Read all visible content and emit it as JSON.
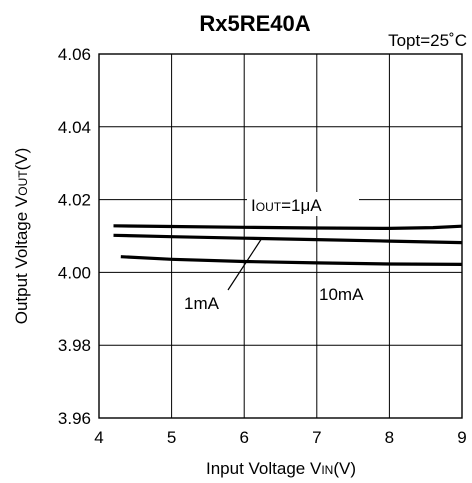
{
  "chart_data": {
    "type": "line",
    "title": "Rx5RE40A",
    "condition": "Topt=25˚C",
    "xlabel": {
      "main": "Input Voltage V",
      "sub": "IN",
      "unit": "(V)"
    },
    "ylabel": {
      "main": "Output Voltage V",
      "sub": "OUT",
      "unit": "(V)"
    },
    "xlim": [
      4,
      9
    ],
    "ylim": [
      3.96,
      4.06
    ],
    "x_ticks": [
      4,
      5,
      6,
      7,
      8,
      9
    ],
    "x_tick_labels": [
      "4",
      "5",
      "6",
      "7",
      "8",
      "9"
    ],
    "y_ticks": [
      3.96,
      3.98,
      4.0,
      4.02,
      4.04,
      4.06
    ],
    "y_tick_labels": [
      "3.96",
      "3.98",
      "4.00",
      "4.02",
      "4.04",
      "4.06"
    ],
    "grid": true,
    "series": [
      {
        "label": "IOUT=1μA",
        "x": [
          4.2,
          5,
          6,
          7,
          8,
          8.6,
          9
        ],
        "y": [
          4.0128,
          4.0126,
          4.0124,
          4.0122,
          4.0121,
          4.0123,
          4.0127
        ]
      },
      {
        "label": "1mA",
        "x": [
          4.2,
          5,
          6,
          7,
          8,
          9
        ],
        "y": [
          4.0102,
          4.0098,
          4.0094,
          4.009,
          4.0086,
          4.0082
        ]
      },
      {
        "label": "10mA",
        "x": [
          4.3,
          5,
          6,
          7,
          8,
          9
        ],
        "y": [
          4.0043,
          4.0036,
          4.003,
          4.0026,
          4.0023,
          4.0022
        ]
      }
    ],
    "annotations": [
      {
        "main": "I",
        "sub": "OUT",
        "rest": "=1μA",
        "series": 0
      },
      {
        "text": "1mA",
        "series": 1
      },
      {
        "text": "10mA",
        "series": 2
      }
    ]
  }
}
